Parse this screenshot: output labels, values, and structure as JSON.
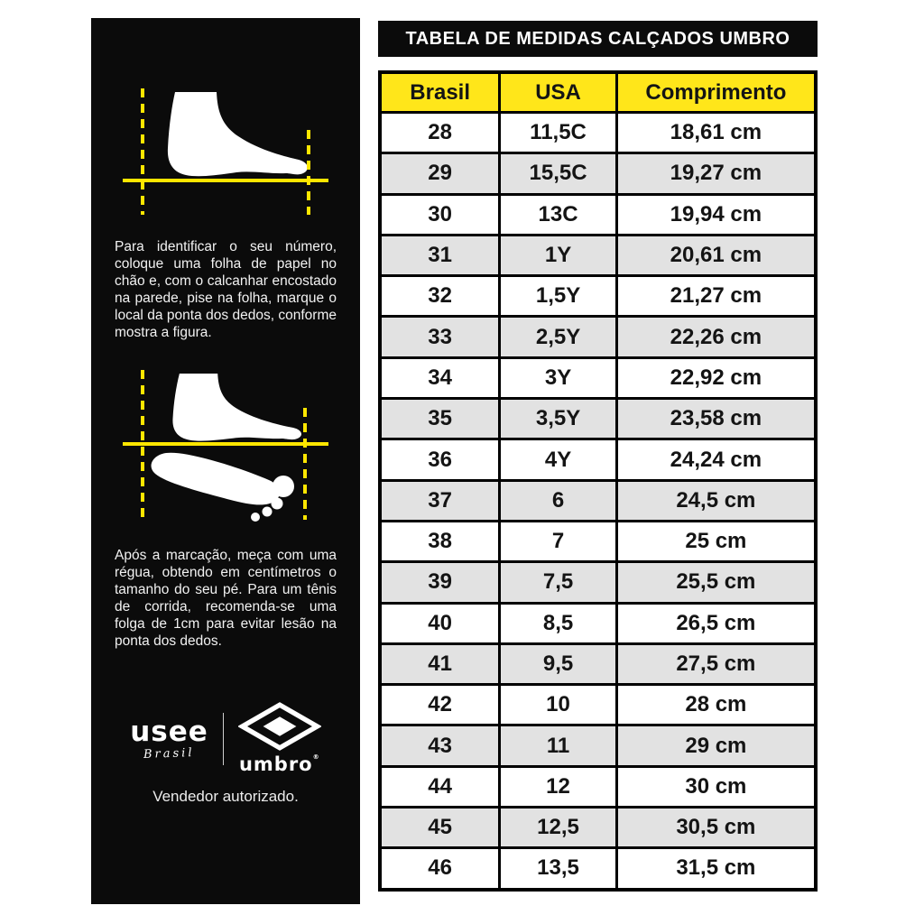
{
  "colors": {
    "accent_yellow": "#ffe61a",
    "panel_black": "#0b0b0b",
    "row_gray": "#e2e2e2",
    "measure_line_yellow": "#ffe600"
  },
  "panel": {
    "instructions_1": "Para identificar o seu número, coloque uma folha de papel no chão e, com o calcanhar encostado na parede, pise na folha, marque o local da ponta dos dedos, conforme mostra a figura.",
    "instructions_2": "Após a marcação, meça com uma régua, obtendo em centímetros o tamanho do seu pé. Para um tênis de corrida, recomenda-se uma folga de 1cm para evitar lesão na ponta dos dedos.",
    "logos": {
      "usee_text": "usee",
      "usee_subtext": "Brasil",
      "umbro_text": "umbro",
      "umbro_reg": "®"
    },
    "vendor_text": "Vendedor autorizado.",
    "icons": [
      "foot-side-measure-icon",
      "foot-and-footprint-measure-icon",
      "usee-logo",
      "umbro-diamond-icon"
    ]
  },
  "table": {
    "title": "TABELA DE MEDIDAS CALÇADOS UMBRO",
    "headers": [
      "Brasil",
      "USA",
      "Comprimento"
    ],
    "rows": [
      [
        "28",
        "11,5C",
        "18,61 cm"
      ],
      [
        "29",
        "15,5C",
        "19,27 cm"
      ],
      [
        "30",
        "13C",
        "19,94 cm"
      ],
      [
        "31",
        "1Y",
        "20,61 cm"
      ],
      [
        "32",
        "1,5Y",
        "21,27 cm"
      ],
      [
        "33",
        "2,5Y",
        "22,26 cm"
      ],
      [
        "34",
        "3Y",
        "22,92 cm"
      ],
      [
        "35",
        "3,5Y",
        "23,58 cm"
      ],
      [
        "36",
        "4Y",
        "24,24 cm"
      ],
      [
        "37",
        "6",
        "24,5 cm"
      ],
      [
        "38",
        "7",
        "25 cm"
      ],
      [
        "39",
        "7,5",
        "25,5 cm"
      ],
      [
        "40",
        "8,5",
        "26,5 cm"
      ],
      [
        "41",
        "9,5",
        "27,5 cm"
      ],
      [
        "42",
        "10",
        "28 cm"
      ],
      [
        "43",
        "11",
        "29 cm"
      ],
      [
        "44",
        "12",
        "30 cm"
      ],
      [
        "45",
        "12,5",
        "30,5 cm"
      ],
      [
        "46",
        "13,5",
        "31,5 cm"
      ]
    ]
  }
}
